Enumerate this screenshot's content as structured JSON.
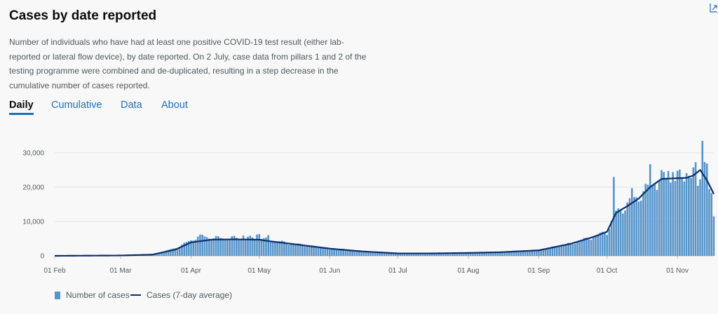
{
  "header": {
    "title": "Cases by date reported",
    "description": "Number of individuals who have had at least one positive COVID-19 test result (either lab-reported or lateral flow device), by date reported. On 2 July, case data from pillars 1 and 2 of the testing programme were combined and de-duplicated, resulting in a step decrease in the cumulative number of cases reported."
  },
  "tabs": [
    {
      "label": "Daily"
    },
    {
      "label": "Cumulative"
    },
    {
      "label": "Data"
    },
    {
      "label": "About"
    }
  ],
  "legend": {
    "bars": "Number of cases",
    "line": "Cases (7-day average)"
  },
  "colors": {
    "bars": "#5694ca",
    "line": "#0b2e6f",
    "grid": "#e5e5e5",
    "tab_accent": "#1d70b8"
  },
  "chart_data": {
    "type": "bar",
    "x_start": "2020-02-01",
    "x_end": "2020-11-17",
    "xticks": [
      {
        "date": "2020-02-01",
        "label": "01 Feb"
      },
      {
        "date": "2020-03-01",
        "label": "01 Mar"
      },
      {
        "date": "2020-04-01",
        "label": "01 Apr"
      },
      {
        "date": "2020-05-01",
        "label": "01 May"
      },
      {
        "date": "2020-06-01",
        "label": "01 Jun"
      },
      {
        "date": "2020-07-01",
        "label": "01 Jul"
      },
      {
        "date": "2020-08-01",
        "label": "01 Aug"
      },
      {
        "date": "2020-09-01",
        "label": "01 Sep"
      },
      {
        "date": "2020-10-01",
        "label": "01 Oct"
      },
      {
        "date": "2020-11-01",
        "label": "01 Nov"
      }
    ],
    "yticks": [
      {
        "value": 0,
        "label": "0"
      },
      {
        "value": 10000,
        "label": "10,000"
      },
      {
        "value": 20000,
        "label": "20,000"
      },
      {
        "value": 30000,
        "label": "30,000"
      }
    ],
    "ylim": [
      0,
      33000
    ],
    "grid": true,
    "legend_position": "bottom-left",
    "daily_cases_keypoints": [
      [
        "2020-02-01",
        0
      ],
      [
        "2020-03-01",
        100
      ],
      [
        "2020-03-15",
        400
      ],
      [
        "2020-03-25",
        2200
      ],
      [
        "2020-04-01",
        4500
      ],
      [
        "2020-04-05",
        5900
      ],
      [
        "2020-04-10",
        5200
      ],
      [
        "2020-04-20",
        5200
      ],
      [
        "2020-05-01",
        5200
      ],
      [
        "2020-05-05",
        4600
      ],
      [
        "2020-05-15",
        3600
      ],
      [
        "2020-06-01",
        2200
      ],
      [
        "2020-06-15",
        1400
      ],
      [
        "2020-07-01",
        700
      ],
      [
        "2020-07-15",
        650
      ],
      [
        "2020-08-01",
        850
      ],
      [
        "2020-08-15",
        1100
      ],
      [
        "2020-09-01",
        1600
      ],
      [
        "2020-09-15",
        3500
      ],
      [
        "2020-09-25",
        5500
      ],
      [
        "2020-10-01",
        7000
      ],
      [
        "2020-10-05",
        12500
      ],
      [
        "2020-10-10",
        15000
      ],
      [
        "2020-10-15",
        17500
      ],
      [
        "2020-10-20",
        20000
      ],
      [
        "2020-10-25",
        22500
      ],
      [
        "2020-11-01",
        22500
      ],
      [
        "2020-11-05",
        23000
      ],
      [
        "2020-11-10",
        24500
      ],
      [
        "2020-11-13",
        23000
      ],
      [
        "2020-11-17",
        14000
      ]
    ],
    "daily_cases_spikes": [
      [
        "2020-04-05",
        6200
      ],
      [
        "2020-04-24",
        5900
      ],
      [
        "2020-04-30",
        6200
      ],
      [
        "2020-05-01",
        6300
      ],
      [
        "2020-05-05",
        6000
      ],
      [
        "2020-10-04",
        22961
      ],
      [
        "2020-10-12",
        19700
      ],
      [
        "2020-10-20",
        26688
      ],
      [
        "2020-10-22",
        21200
      ],
      [
        "2020-10-28",
        24700
      ],
      [
        "2020-10-30",
        24400
      ],
      [
        "2020-11-05",
        24100
      ],
      [
        "2020-11-06",
        23300
      ],
      [
        "2020-11-10",
        20400
      ],
      [
        "2020-11-12",
        33470
      ],
      [
        "2020-11-13",
        27300
      ],
      [
        "2020-11-14",
        26860
      ],
      [
        "2020-11-17",
        11500
      ]
    ],
    "average_keypoints": [
      [
        "2020-02-01",
        0
      ],
      [
        "2020-03-01",
        100
      ],
      [
        "2020-03-15",
        350
      ],
      [
        "2020-03-25",
        1800
      ],
      [
        "2020-04-01",
        3900
      ],
      [
        "2020-04-10",
        4700
      ],
      [
        "2020-04-20",
        4800
      ],
      [
        "2020-05-01",
        4700
      ],
      [
        "2020-05-05",
        4300
      ],
      [
        "2020-05-15",
        3500
      ],
      [
        "2020-06-01",
        2100
      ],
      [
        "2020-06-15",
        1300
      ],
      [
        "2020-07-01",
        700
      ],
      [
        "2020-07-15",
        700
      ],
      [
        "2020-08-01",
        850
      ],
      [
        "2020-08-15",
        1050
      ],
      [
        "2020-09-01",
        1600
      ],
      [
        "2020-09-15",
        3500
      ],
      [
        "2020-09-25",
        5500
      ],
      [
        "2020-10-01",
        7000
      ],
      [
        "2020-10-05",
        12500
      ],
      [
        "2020-10-10",
        14500
      ],
      [
        "2020-10-15",
        16700
      ],
      [
        "2020-10-20",
        20000
      ],
      [
        "2020-10-25",
        22400
      ],
      [
        "2020-11-01",
        22600
      ],
      [
        "2020-11-05",
        22700
      ],
      [
        "2020-11-08",
        23400
      ],
      [
        "2020-11-11",
        25000
      ],
      [
        "2020-11-14",
        22000
      ],
      [
        "2020-11-17",
        18000
      ]
    ]
  }
}
